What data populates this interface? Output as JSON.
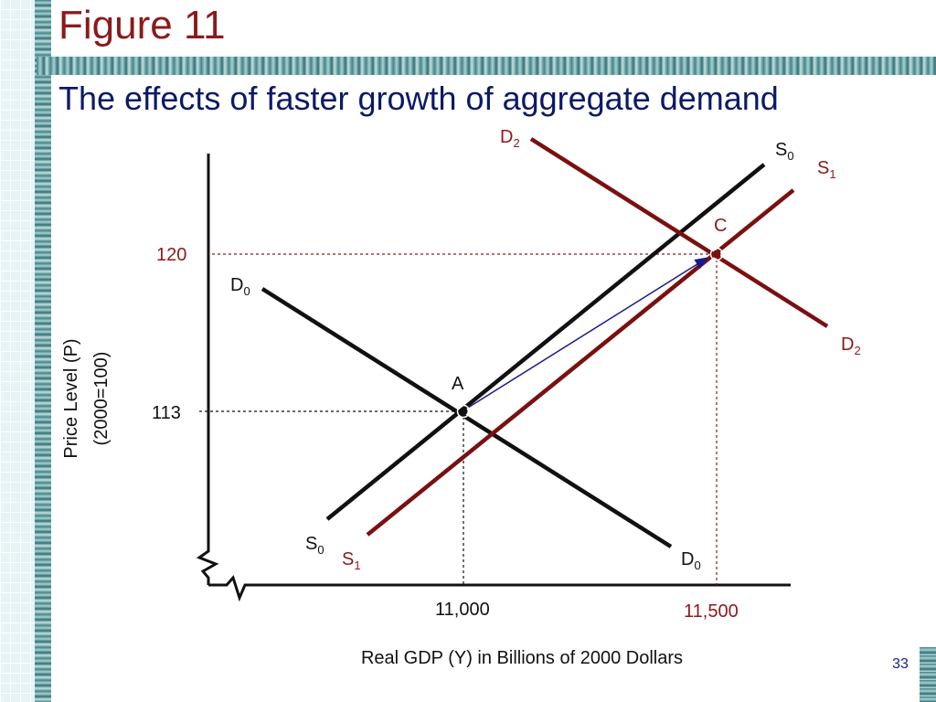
{
  "header": {
    "figure_title": "Figure 11",
    "subtitle": "The effects of faster growth of aggregate demand"
  },
  "slide": {
    "page_number": "33"
  },
  "colors": {
    "title": "#8b1a1a",
    "subtitle": "#0b1a66",
    "curve_black": "#111111",
    "curve_red": "#7a1010",
    "arrow": "#1a1a8c",
    "guide": "#8b1a1a"
  },
  "diagram": {
    "y_axis_label_line1": "Price Level (P)",
    "y_axis_label_line2": "(2000=100)",
    "x_axis_label": "Real GDP (Y) in Billions of 2000 Dollars",
    "y_ticks": [
      {
        "text": "120",
        "value": 120,
        "color": "red"
      },
      {
        "text": "113",
        "value": 113,
        "color": "black"
      }
    ],
    "x_ticks": [
      {
        "text": "11,000",
        "value": 11000,
        "color": "black"
      },
      {
        "text": "11,500",
        "value": 11500,
        "color": "red"
      }
    ],
    "points": {
      "A": {
        "label": "A",
        "x": 11000,
        "y": 113
      },
      "C": {
        "label": "C",
        "x": 11500,
        "y": 120
      }
    },
    "curves": {
      "D0": {
        "base": "D",
        "sub": "0"
      },
      "D2": {
        "base": "D",
        "sub": "2"
      },
      "S0": {
        "base": "S",
        "sub": "0"
      },
      "S1": {
        "base": "S",
        "sub": "1"
      }
    }
  }
}
